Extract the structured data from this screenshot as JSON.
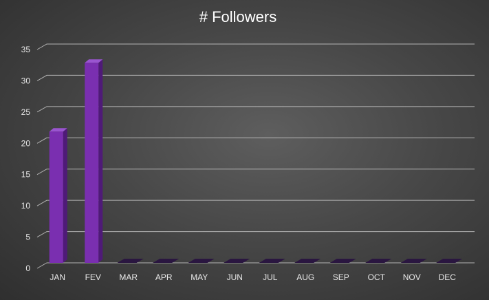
{
  "chart_data": {
    "type": "bar",
    "title": "# Followers",
    "categories": [
      "JAN",
      "FEV",
      "MAR",
      "APR",
      "MAY",
      "JUN",
      "JUL",
      "AUG",
      "SEP",
      "OCT",
      "NOV",
      "DEC"
    ],
    "values": [
      21,
      32,
      0,
      0,
      0,
      0,
      0,
      0,
      0,
      0,
      0,
      0
    ],
    "ylim": [
      0,
      35
    ],
    "yticks": [
      0,
      5,
      10,
      15,
      20,
      25,
      30,
      35
    ],
    "xlabel": "",
    "ylabel": "",
    "grid": true,
    "legend": "none",
    "colors": {
      "bar_front": "#7a2fb0",
      "bar_side": "#4f1a78",
      "bar_top": "#9a55d0",
      "gridline": "#c8c8c8"
    }
  }
}
